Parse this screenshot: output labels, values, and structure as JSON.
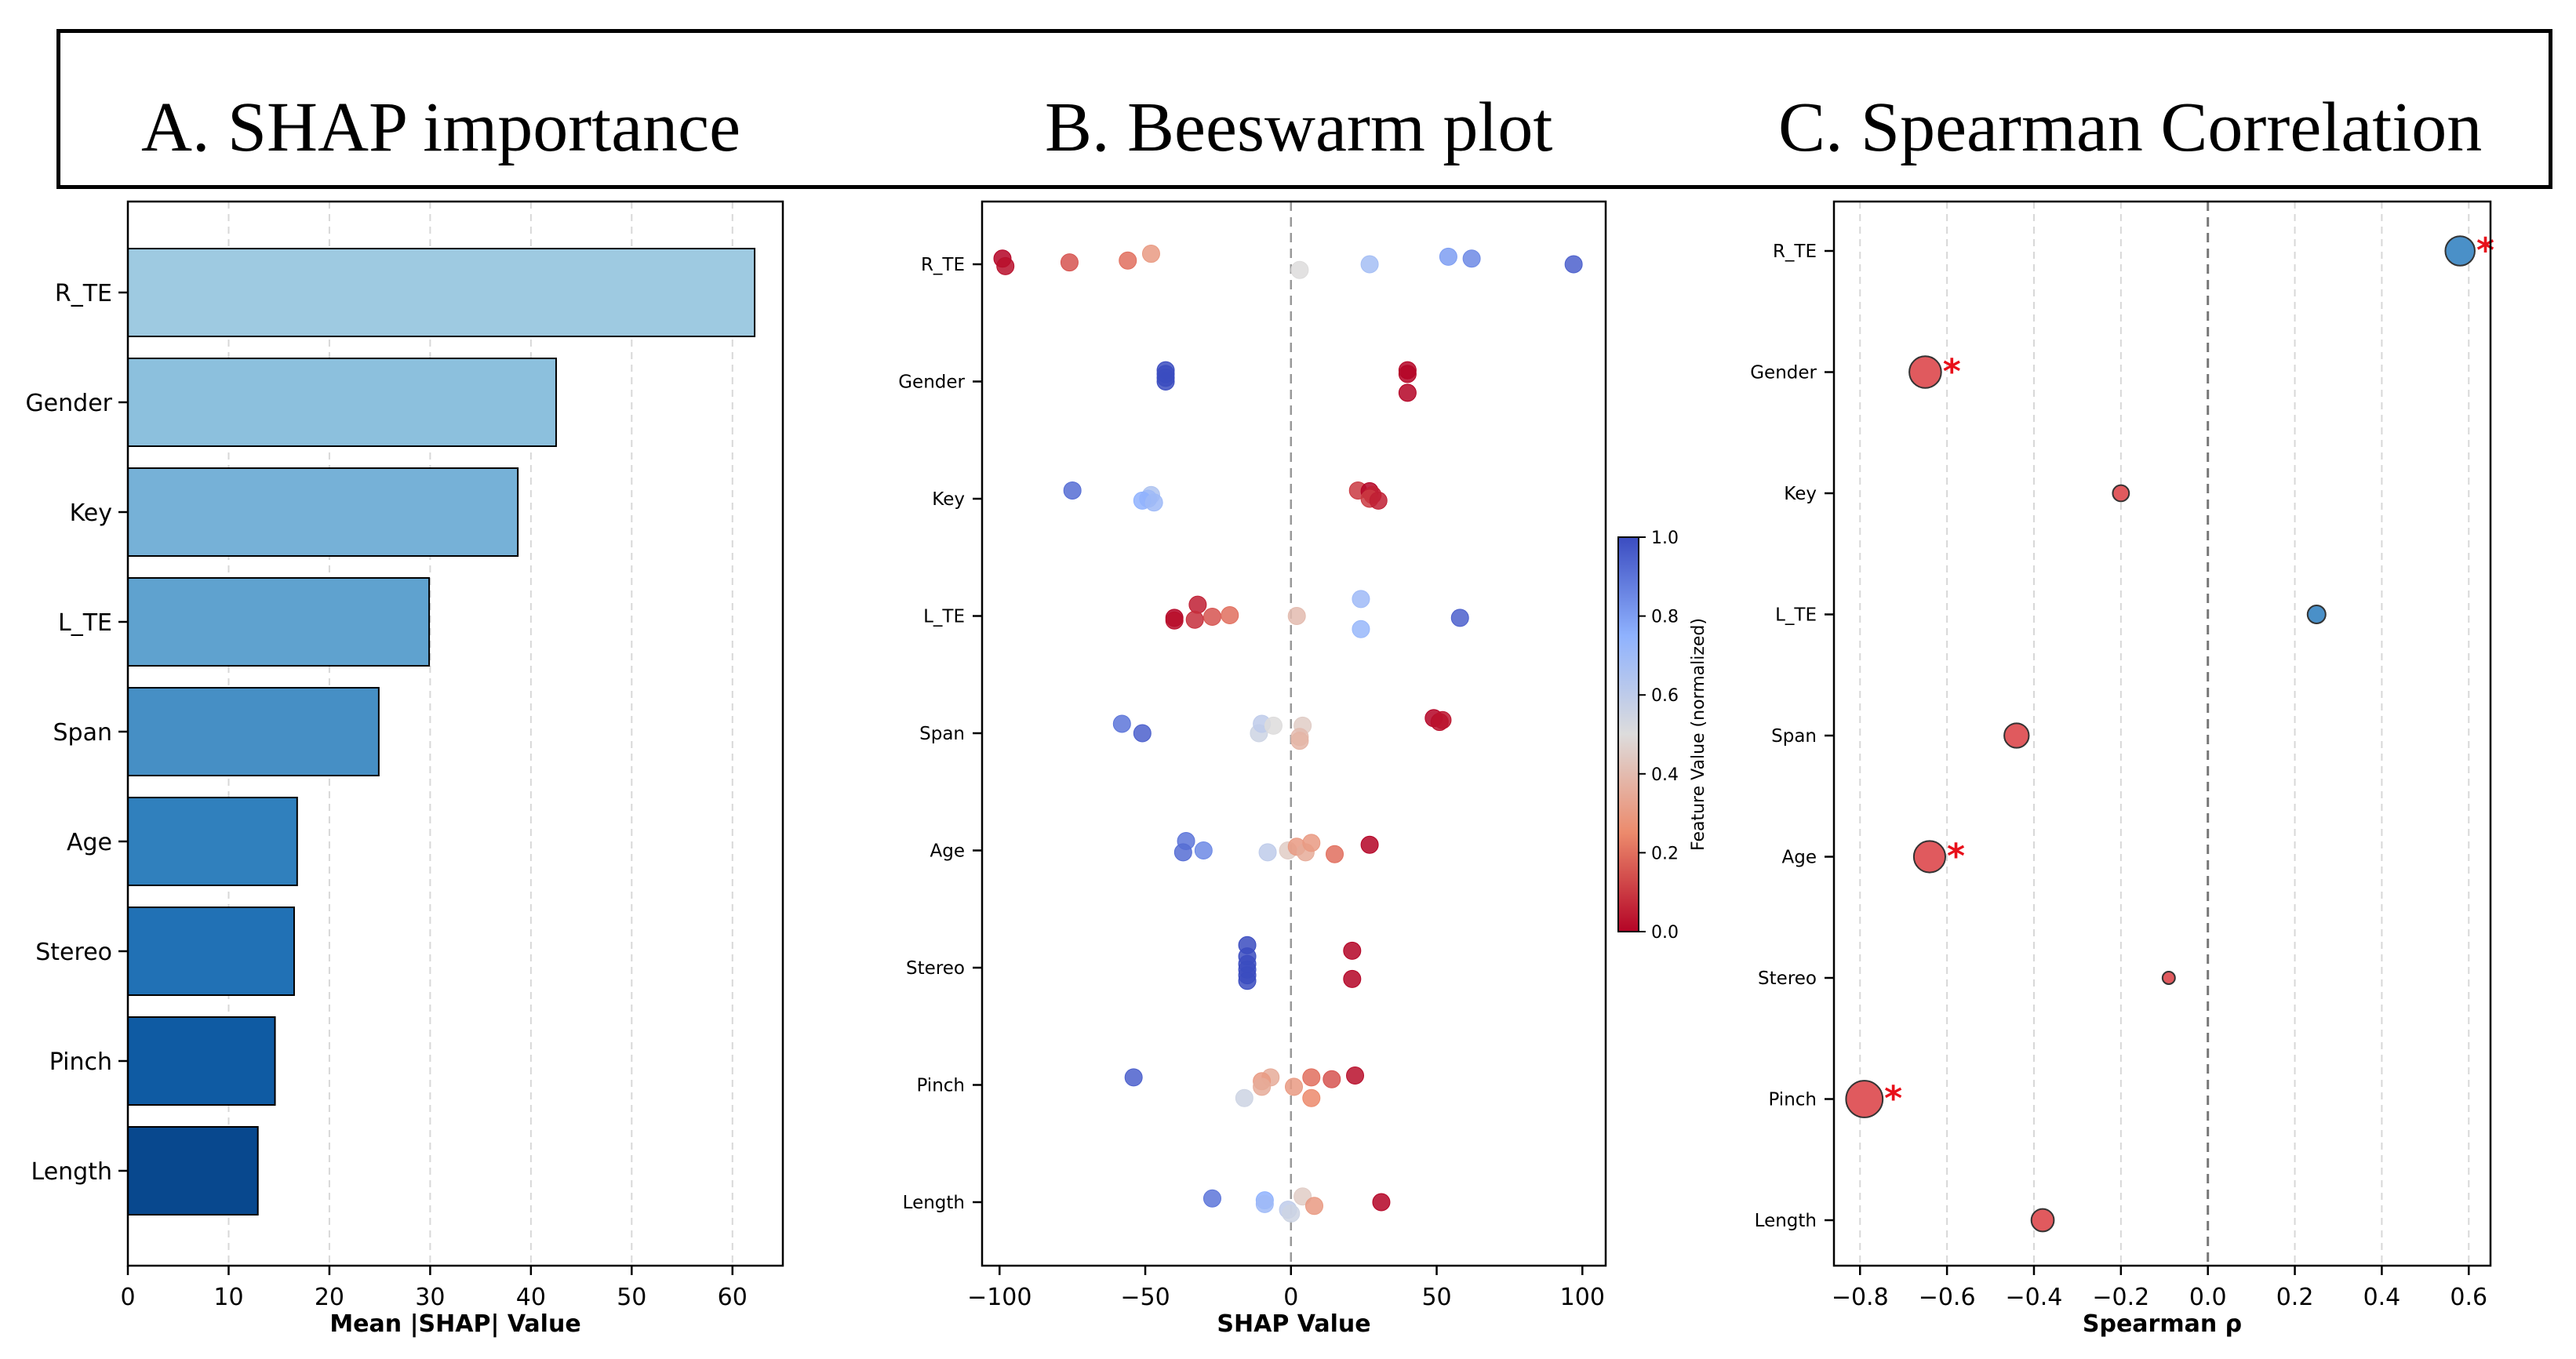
{
  "header": {
    "title_a": "A. SHAP importance",
    "title_b": "B. Beeswarm plot",
    "title_c": "C. Spearman Correlation"
  },
  "features": [
    "R_TE",
    "Gender",
    "Key",
    "L_TE",
    "Span",
    "Age",
    "Stereo",
    "Pinch",
    "Length"
  ],
  "chart_data": [
    {
      "type": "bar",
      "orientation": "horizontal",
      "panel": "A",
      "categories": [
        "R_TE",
        "Gender",
        "Key",
        "L_TE",
        "Span",
        "Age",
        "Stereo",
        "Pinch",
        "Length"
      ],
      "values": [
        62.2,
        42.5,
        38.7,
        29.9,
        24.9,
        16.8,
        16.5,
        14.6,
        12.9
      ],
      "colors": [
        "#9ecae1",
        "#8cc0dd",
        "#76b1d7",
        "#5fa2cf",
        "#468fc5",
        "#3080bd",
        "#2171b5",
        "#0f5ba3",
        "#08488e"
      ],
      "xlabel": "Mean |SHAP| Value",
      "xlim": [
        0,
        65
      ],
      "xticks": [
        0,
        10,
        20,
        30,
        40,
        50,
        60
      ],
      "grid": "vertical dashed"
    },
    {
      "type": "scatter",
      "panel": "B",
      "xlabel": "SHAP Value",
      "xlim": [
        -106,
        108
      ],
      "xticks": [
        -100,
        -50,
        0,
        50,
        100
      ],
      "colorbar": {
        "label": "Feature Value (normalized)",
        "range": [
          0,
          1
        ],
        "ticks": [
          "0.0",
          "0.2",
          "0.4",
          "0.6",
          "0.8",
          "1.0"
        ],
        "colormap": "coolwarm"
      },
      "points": [
        {
          "f": "R_TE",
          "x": -99,
          "v": 0.0,
          "j": -0.15
        },
        {
          "f": "R_TE",
          "x": -98,
          "v": 0.02,
          "j": 0.05
        },
        {
          "f": "R_TE",
          "x": -76,
          "v": 0.15,
          "j": -0.05
        },
        {
          "f": "R_TE",
          "x": -56,
          "v": 0.2,
          "j": -0.1
        },
        {
          "f": "R_TE",
          "x": -48,
          "v": 0.3,
          "j": -0.28
        },
        {
          "f": "R_TE",
          "x": 3,
          "v": 0.5,
          "j": 0.15
        },
        {
          "f": "R_TE",
          "x": 27,
          "v": 0.68,
          "j": 0.0
        },
        {
          "f": "R_TE",
          "x": 54,
          "v": 0.8,
          "j": -0.2
        },
        {
          "f": "R_TE",
          "x": 62,
          "v": 0.85,
          "j": -0.15
        },
        {
          "f": "R_TE",
          "x": 97,
          "v": 0.95,
          "j": 0.0
        },
        {
          "f": "Gender",
          "x": -43,
          "v": 1.0,
          "j": -0.3
        },
        {
          "f": "Gender",
          "x": -43,
          "v": 1.0,
          "j": -0.2
        },
        {
          "f": "Gender",
          "x": -43,
          "v": 1.0,
          "j": -0.1
        },
        {
          "f": "Gender",
          "x": -43,
          "v": 1.0,
          "j": 0.0
        },
        {
          "f": "Gender",
          "x": 40,
          "v": 0.0,
          "j": -0.3
        },
        {
          "f": "Gender",
          "x": 40,
          "v": 0.0,
          "j": -0.2
        },
        {
          "f": "Gender",
          "x": 40,
          "v": 0.0,
          "j": 0.3
        },
        {
          "f": "Key",
          "x": -75,
          "v": 0.92,
          "j": -0.22
        },
        {
          "f": "Key",
          "x": -48,
          "v": 0.65,
          "j": -0.1
        },
        {
          "f": "Key",
          "x": -49,
          "v": 0.7,
          "j": 0.0
        },
        {
          "f": "Key",
          "x": -51,
          "v": 0.75,
          "j": 0.05
        },
        {
          "f": "Key",
          "x": -47,
          "v": 0.7,
          "j": 0.1
        },
        {
          "f": "Key",
          "x": 23,
          "v": 0.1,
          "j": -0.22
        },
        {
          "f": "Key",
          "x": 27,
          "v": 0.0,
          "j": -0.2
        },
        {
          "f": "Key",
          "x": 28,
          "v": 0.05,
          "j": -0.1
        },
        {
          "f": "Key",
          "x": 27,
          "v": 0.1,
          "j": 0.0
        },
        {
          "f": "Key",
          "x": 30,
          "v": 0.05,
          "j": 0.05
        },
        {
          "f": "L_TE",
          "x": -32,
          "v": 0.05,
          "j": -0.3
        },
        {
          "f": "L_TE",
          "x": -40,
          "v": 0.0,
          "j": 0.05
        },
        {
          "f": "L_TE",
          "x": -40,
          "v": 0.02,
          "j": 0.12
        },
        {
          "f": "L_TE",
          "x": -33,
          "v": 0.08,
          "j": 0.1
        },
        {
          "f": "L_TE",
          "x": -27,
          "v": 0.15,
          "j": 0.02
        },
        {
          "f": "L_TE",
          "x": -21,
          "v": 0.2,
          "j": -0.02
        },
        {
          "f": "L_TE",
          "x": 2,
          "v": 0.4,
          "j": 0.0
        },
        {
          "f": "L_TE",
          "x": 24,
          "v": 0.7,
          "j": -0.45
        },
        {
          "f": "L_TE",
          "x": 24,
          "v": 0.72,
          "j": 0.35
        },
        {
          "f": "L_TE",
          "x": 58,
          "v": 0.95,
          "j": 0.05
        },
        {
          "f": "Span",
          "x": -58,
          "v": 0.9,
          "j": -0.25
        },
        {
          "f": "Span",
          "x": -51,
          "v": 0.95,
          "j": 0.0
        },
        {
          "f": "Span",
          "x": -11,
          "v": 0.55,
          "j": 0.0
        },
        {
          "f": "Span",
          "x": -10,
          "v": 0.6,
          "j": -0.25
        },
        {
          "f": "Span",
          "x": -6,
          "v": 0.5,
          "j": -0.2
        },
        {
          "f": "Span",
          "x": 4,
          "v": 0.45,
          "j": -0.2
        },
        {
          "f": "Span",
          "x": 3,
          "v": 0.4,
          "j": 0.1
        },
        {
          "f": "Span",
          "x": 3,
          "v": 0.38,
          "j": 0.2
        },
        {
          "f": "Span",
          "x": 49,
          "v": 0.0,
          "j": -0.4
        },
        {
          "f": "Span",
          "x": 51,
          "v": 0.02,
          "j": -0.3
        },
        {
          "f": "Span",
          "x": 52,
          "v": 0.03,
          "j": -0.35
        },
        {
          "f": "Age",
          "x": -36,
          "v": 0.9,
          "j": -0.25
        },
        {
          "f": "Age",
          "x": -37,
          "v": 0.92,
          "j": 0.05
        },
        {
          "f": "Age",
          "x": -30,
          "v": 0.85,
          "j": 0.0
        },
        {
          "f": "Age",
          "x": -8,
          "v": 0.6,
          "j": 0.05
        },
        {
          "f": "Age",
          "x": -1,
          "v": 0.45,
          "j": 0.0
        },
        {
          "f": "Age",
          "x": 2,
          "v": 0.3,
          "j": -0.1
        },
        {
          "f": "Age",
          "x": 5,
          "v": 0.35,
          "j": 0.05
        },
        {
          "f": "Age",
          "x": 7,
          "v": 0.3,
          "j": -0.2
        },
        {
          "f": "Age",
          "x": 15,
          "v": 0.2,
          "j": 0.1
        },
        {
          "f": "Age",
          "x": 27,
          "v": 0.0,
          "j": -0.15
        },
        {
          "f": "Stereo",
          "x": -15,
          "v": 1.0,
          "j": -0.6
        },
        {
          "f": "Stereo",
          "x": -15,
          "v": 1.0,
          "j": -0.3
        },
        {
          "f": "Stereo",
          "x": -15,
          "v": 1.0,
          "j": -0.1
        },
        {
          "f": "Stereo",
          "x": -15,
          "v": 1.0,
          "j": 0.05
        },
        {
          "f": "Stereo",
          "x": -15,
          "v": 1.0,
          "j": 0.2
        },
        {
          "f": "Stereo",
          "x": -15,
          "v": 1.0,
          "j": 0.35
        },
        {
          "f": "Stereo",
          "x": 21,
          "v": 0.0,
          "j": -0.45
        },
        {
          "f": "Stereo",
          "x": 21,
          "v": 0.0,
          "j": 0.3
        },
        {
          "f": "Pinch",
          "x": -54,
          "v": 0.95,
          "j": -0.2
        },
        {
          "f": "Pinch",
          "x": -7,
          "v": 0.35,
          "j": -0.2
        },
        {
          "f": "Pinch",
          "x": -10,
          "v": 0.3,
          "j": -0.1
        },
        {
          "f": "Pinch",
          "x": -10,
          "v": 0.35,
          "j": 0.05
        },
        {
          "f": "Pinch",
          "x": -16,
          "v": 0.55,
          "j": 0.35
        },
        {
          "f": "Pinch",
          "x": 1,
          "v": 0.3,
          "j": 0.05
        },
        {
          "f": "Pinch",
          "x": 7,
          "v": 0.2,
          "j": -0.2
        },
        {
          "f": "Pinch",
          "x": 7,
          "v": 0.25,
          "j": 0.35
        },
        {
          "f": "Pinch",
          "x": 14,
          "v": 0.15,
          "j": -0.15
        },
        {
          "f": "Pinch",
          "x": 22,
          "v": 0.02,
          "j": -0.25
        },
        {
          "f": "Length",
          "x": -27,
          "v": 0.9,
          "j": -0.1
        },
        {
          "f": "Length",
          "x": -9,
          "v": 0.75,
          "j": -0.05
        },
        {
          "f": "Length",
          "x": -9,
          "v": 0.7,
          "j": 0.05
        },
        {
          "f": "Length",
          "x": -1,
          "v": 0.6,
          "j": 0.2
        },
        {
          "f": "Length",
          "x": 0,
          "v": 0.55,
          "j": 0.3
        },
        {
          "f": "Length",
          "x": 4,
          "v": 0.45,
          "j": -0.15
        },
        {
          "f": "Length",
          "x": 8,
          "v": 0.3,
          "j": 0.1
        },
        {
          "f": "Length",
          "x": 31,
          "v": 0.0,
          "j": 0.0
        }
      ]
    },
    {
      "type": "scatter",
      "panel": "C",
      "xlabel": "Spearman ρ",
      "xlim": [
        -0.86,
        0.65
      ],
      "xticks": [
        -0.8,
        -0.6,
        -0.4,
        -0.2,
        0.0,
        0.2,
        0.4,
        0.6
      ],
      "xtick_labels": [
        "−0.8",
        "−0.6",
        "−0.4",
        "−0.2",
        "0.0",
        "0.2",
        "0.4",
        "0.6"
      ],
      "categories": [
        "R_TE",
        "Gender",
        "Key",
        "L_TE",
        "Span",
        "Age",
        "Stereo",
        "Pinch",
        "Length"
      ],
      "values": [
        0.58,
        -0.65,
        -0.2,
        0.25,
        -0.44,
        -0.64,
        -0.09,
        -0.79,
        -0.38
      ],
      "significant": [
        true,
        true,
        false,
        false,
        false,
        true,
        false,
        true,
        false
      ],
      "marker_text": "*",
      "positive_color": "#4a90c8",
      "negative_color": "#e05a5e",
      "grid": "vertical dashed"
    }
  ]
}
